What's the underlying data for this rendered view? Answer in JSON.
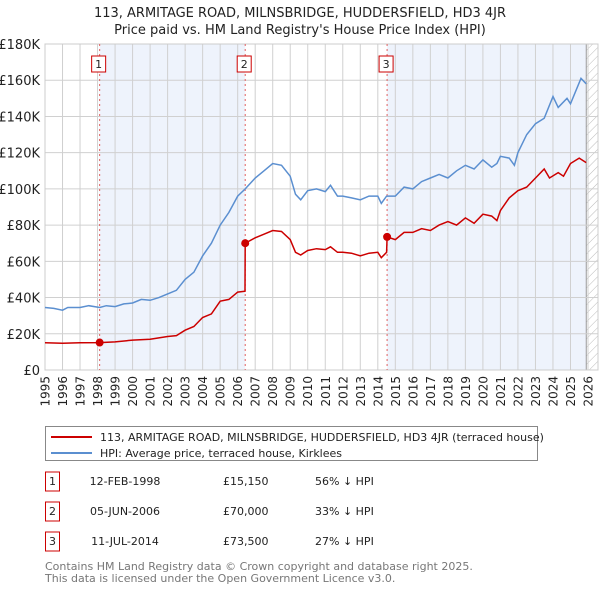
{
  "chart_data": {
    "type": "line",
    "title": "113, ARMITAGE ROAD, MILNSBRIDGE, HUDDERSFIELD, HD3 4JR",
    "subtitle": "Price paid vs. HM Land Registry's House Price Index (HPI)",
    "xlim": [
      1995,
      2026.6
    ],
    "ylim": [
      0,
      180000
    ],
    "grid": true,
    "x_ticks": [
      "1995",
      "1996",
      "1997",
      "1998",
      "1999",
      "2000",
      "2001",
      "2002",
      "2003",
      "2004",
      "2005",
      "2006",
      "2007",
      "2008",
      "2009",
      "2010",
      "2011",
      "2012",
      "2013",
      "2014",
      "2015",
      "2016",
      "2017",
      "2018",
      "2019",
      "2020",
      "2021",
      "2022",
      "2023",
      "2024",
      "2025",
      "2026"
    ],
    "y_ticks": [
      {
        "v": 0,
        "label": "£0"
      },
      {
        "v": 20000,
        "label": "£20K"
      },
      {
        "v": 40000,
        "label": "£40K"
      },
      {
        "v": 60000,
        "label": "£60K"
      },
      {
        "v": 80000,
        "label": "£80K"
      },
      {
        "v": 100000,
        "label": "£100K"
      },
      {
        "v": 120000,
        "label": "£120K"
      },
      {
        "v": 140000,
        "label": "£140K"
      },
      {
        "v": 160000,
        "label": "£160K"
      },
      {
        "v": 180000,
        "label": "£180K"
      }
    ],
    "shaded_ranges": [
      [
        1998.12,
        2006.43
      ],
      [
        2014.53,
        2025.9
      ]
    ],
    "forecast_hatch_from": 2025.9,
    "series": [
      {
        "name": "113, ARMITAGE ROAD, MILNSBRIDGE, HUDDERSFIELD, HD3 4JR (terraced house)",
        "color": "#cc0000",
        "x": [
          1995,
          1996,
          1997,
          1998.12,
          1999,
          2000,
          2001,
          2002,
          2002.5,
          2003,
          2003.5,
          2004,
          2004.5,
          2005,
          2005.5,
          2006,
          2006.42,
          2006.43,
          2007,
          2007.5,
          2008,
          2008.5,
          2009,
          2009.3,
          2009.6,
          2010,
          2010.5,
          2011,
          2011.3,
          2011.7,
          2012,
          2012.5,
          2013,
          2013.5,
          2014,
          2014.2,
          2014.5,
          2014.53,
          2015,
          2015.5,
          2016,
          2016.5,
          2017,
          2017.5,
          2018,
          2018.5,
          2019,
          2019.5,
          2020,
          2020.5,
          2020.8,
          2021,
          2021.5,
          2022,
          2022.5,
          2023,
          2023.5,
          2023.8,
          2024.3,
          2024.6,
          2025,
          2025.5,
          2025.9
        ],
        "y": [
          15000,
          14800,
          15000,
          15150,
          15500,
          16500,
          17000,
          18500,
          19000,
          22000,
          24000,
          29000,
          31000,
          38000,
          39000,
          43000,
          43500,
          70000,
          73000,
          75000,
          77000,
          76500,
          72000,
          65000,
          63500,
          66000,
          67000,
          66500,
          68000,
          65000,
          65000,
          64500,
          63000,
          64500,
          65000,
          62000,
          65000,
          73500,
          72000,
          76000,
          76000,
          78000,
          77000,
          80000,
          82000,
          80000,
          84000,
          81000,
          86000,
          85000,
          82500,
          88000,
          95000,
          99000,
          101000,
          106000,
          111000,
          106000,
          109000,
          107000,
          114000,
          117000,
          114500
        ]
      },
      {
        "name": "HPI: Average price, terraced house, Kirklees",
        "color": "#5b8fd0",
        "x": [
          1995,
          1995.5,
          1996,
          1996.3,
          1997,
          1997.5,
          1998.12,
          1998.5,
          1999,
          1999.5,
          2000,
          2000.5,
          2001,
          2001.5,
          2002,
          2002.5,
          2003,
          2003.5,
          2004,
          2004.5,
          2005,
          2005.5,
          2006,
          2006.43,
          2007,
          2007.5,
          2008,
          2008.5,
          2009,
          2009.3,
          2009.6,
          2010,
          2010.5,
          2011,
          2011.3,
          2011.7,
          2012,
          2012.5,
          2013,
          2013.5,
          2014,
          2014.2,
          2014.5,
          2015,
          2015.5,
          2016,
          2016.5,
          2017,
          2017.5,
          2018,
          2018.5,
          2019,
          2019.5,
          2020,
          2020.5,
          2020.8,
          2021,
          2021.5,
          2021.8,
          2022,
          2022.5,
          2023,
          2023.5,
          2024,
          2024.3,
          2024.8,
          2025,
          2025.6,
          2025.9
        ],
        "y": [
          34500,
          34000,
          33000,
          34500,
          34500,
          35500,
          34500,
          35500,
          35000,
          36500,
          37000,
          39000,
          38500,
          40000,
          42000,
          44000,
          50000,
          54000,
          63000,
          70000,
          80000,
          87000,
          96000,
          100000,
          106000,
          110000,
          114000,
          113000,
          107000,
          97000,
          94000,
          99000,
          100000,
          98500,
          102000,
          96000,
          96000,
          95000,
          94000,
          96000,
          96000,
          92000,
          96000,
          96000,
          101000,
          100000,
          104000,
          106000,
          108000,
          106000,
          110000,
          113000,
          111000,
          116000,
          112000,
          114000,
          118000,
          117000,
          113000,
          120000,
          130000,
          136000,
          139000,
          151000,
          145000,
          150000,
          147000,
          161000,
          158000
        ]
      }
    ],
    "sales": [
      {
        "n": "1",
        "x": 1998.12,
        "y": 15150,
        "date": "12-FEB-1998",
        "price": "£15,150",
        "hpi": "56% ↓ HPI"
      },
      {
        "n": "2",
        "x": 2006.43,
        "y": 70000,
        "date": "05-JUN-2006",
        "price": "£70,000",
        "hpi": "33% ↓ HPI"
      },
      {
        "n": "3",
        "x": 2014.53,
        "y": 73500,
        "date": "11-JUL-2014",
        "price": "£73,500",
        "hpi": "27% ↓ HPI"
      }
    ]
  },
  "legend": {
    "red_label": "113, ARMITAGE ROAD, MILNSBRIDGE, HUDDERSFIELD, HD3 4JR (terraced house)",
    "blue_label": "HPI: Average price, terraced house, Kirklees"
  },
  "footer": {
    "line1": "Contains HM Land Registry data © Crown copyright and database right 2025.",
    "line2": "This data is licensed under the Open Government Licence v3.0."
  }
}
